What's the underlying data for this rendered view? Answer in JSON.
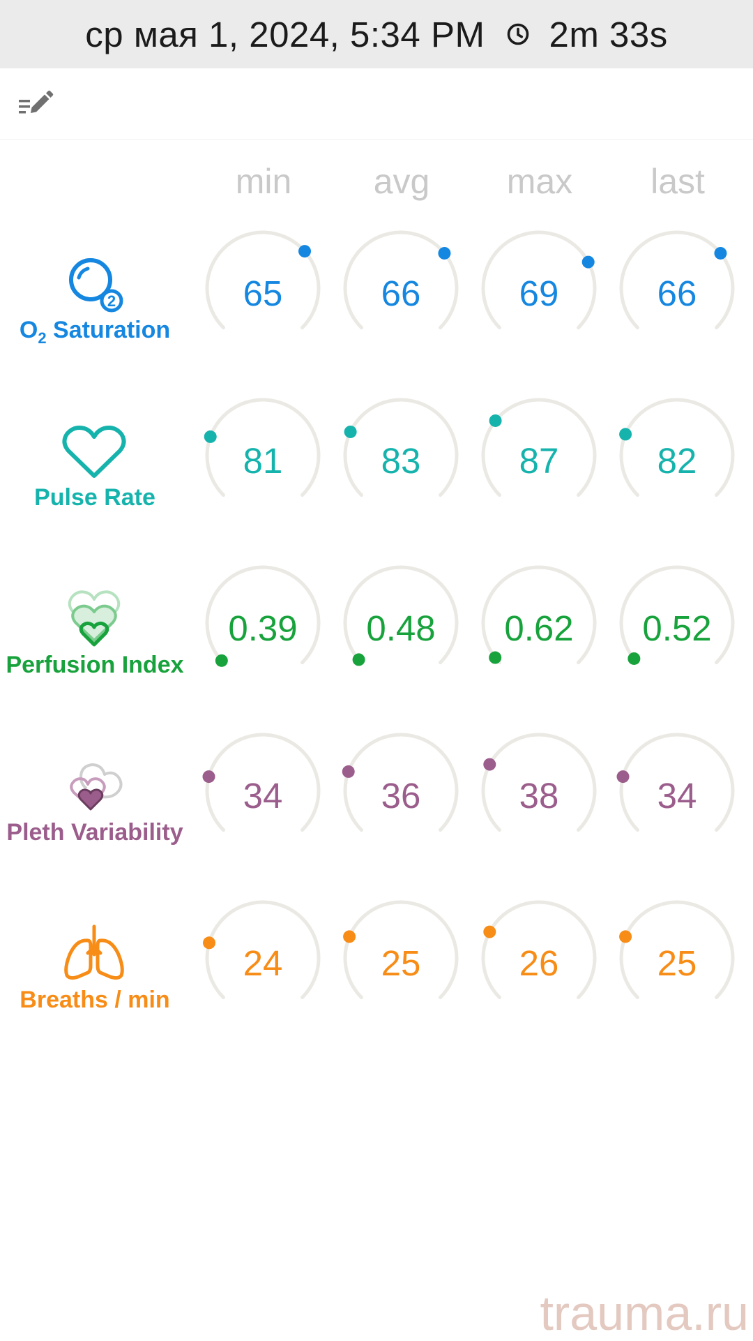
{
  "header": {
    "datetime": "ср мая 1, 2024, 5:34 PM",
    "elapsed": "2m 33s",
    "clock_icon": "clock-icon"
  },
  "toolbar": {
    "edit_icon": "edit-list-icon"
  },
  "columns": [
    "min",
    "avg",
    "max",
    "last"
  ],
  "metrics": [
    {
      "id": "o2",
      "label": "Saturation",
      "label_prefix": "O",
      "label_sub": "2",
      "icon": "o2-bubble-icon",
      "color": "#1587e0",
      "values": [
        "65",
        "66",
        "69",
        "66"
      ],
      "levels": [
        0.68,
        0.69,
        0.73,
        0.69
      ]
    },
    {
      "id": "pulse",
      "label": "Pulse Rate",
      "icon": "heart-icon",
      "color": "#16b3ad",
      "values": [
        "81",
        "83",
        "87",
        "82"
      ],
      "levels": [
        0.24,
        0.26,
        0.31,
        0.25
      ]
    },
    {
      "id": "perfusion",
      "label": "Perfusion Index",
      "icon": "perfusion-hearts-icon",
      "color": "#18a23c",
      "values": [
        "0.39",
        "0.48",
        "0.62",
        "0.52"
      ],
      "levels": [
        0.01,
        0.015,
        0.025,
        0.02
      ]
    },
    {
      "id": "pleth",
      "label": "Pleth Variability",
      "icon": "pleth-hearts-icon",
      "color": "#9b5d8c",
      "values": [
        "34",
        "36",
        "38",
        "34"
      ],
      "levels": [
        0.22,
        0.24,
        0.27,
        0.22
      ]
    },
    {
      "id": "breaths",
      "label": "Breaths / min",
      "icon": "lungs-icon",
      "color": "#f78c16",
      "values": [
        "24",
        "25",
        "26",
        "25"
      ],
      "levels": [
        0.225,
        0.25,
        0.27,
        0.25
      ]
    }
  ],
  "watermark": "trauma.ru"
}
